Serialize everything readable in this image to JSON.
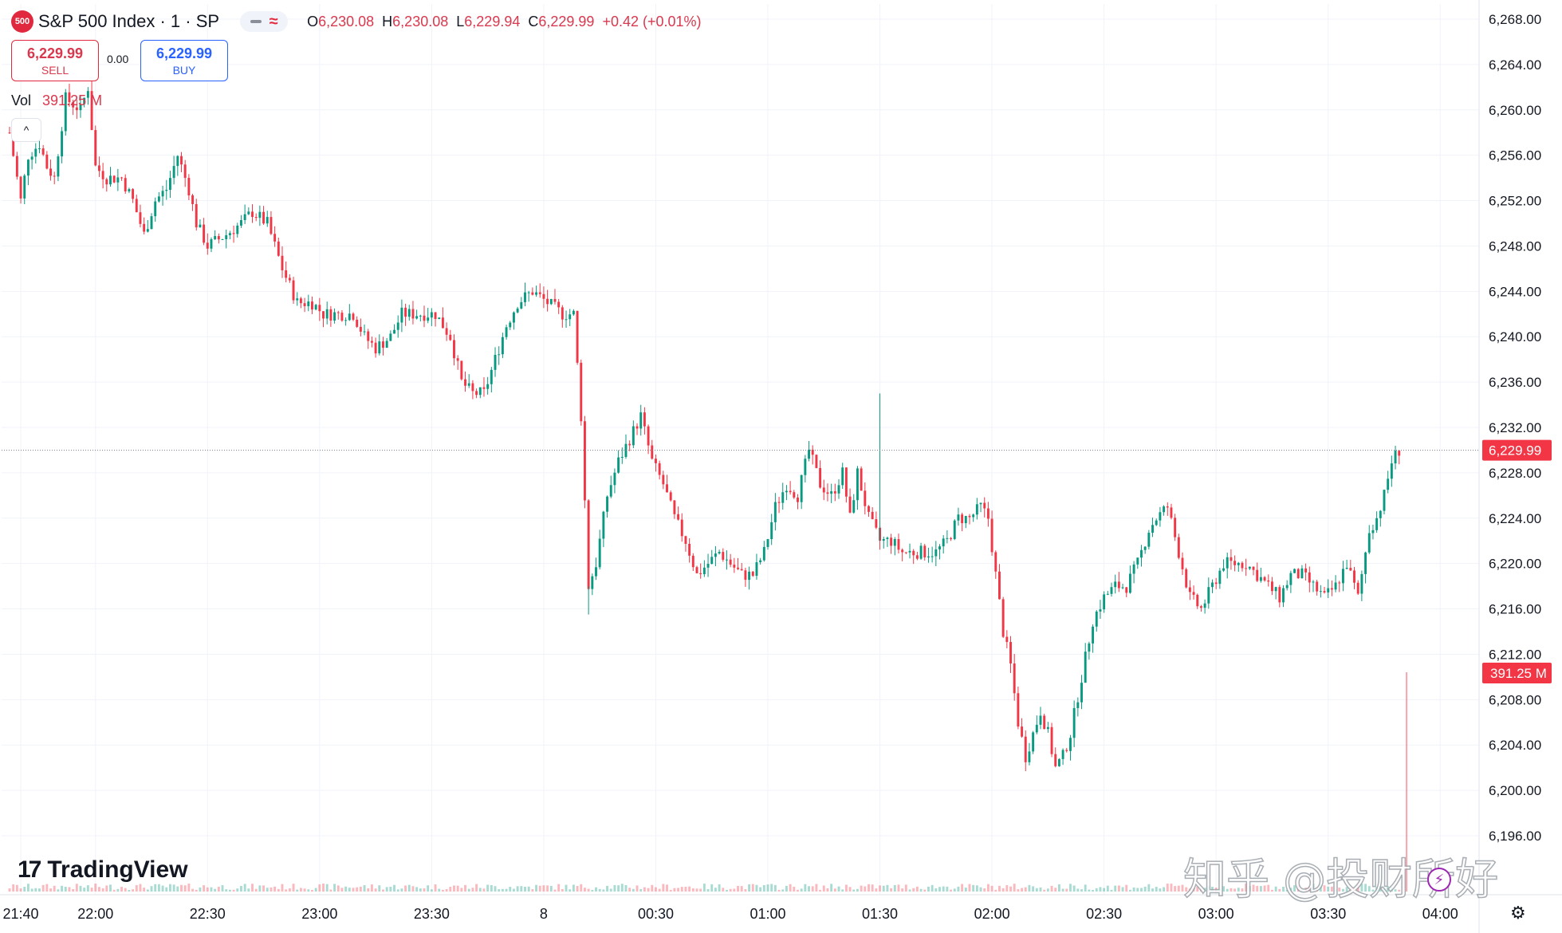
{
  "header": {
    "badge": "500",
    "symbol": "S&P 500 Index · 1 · SP",
    "o_label": "O",
    "o_value": "6,230.08",
    "h_label": "H",
    "h_value": "6,230.08",
    "l_label": "L",
    "l_value": "6,229.94",
    "c_label": "C",
    "c_value": "6,229.99",
    "change": "+0.42 (+0.01%)"
  },
  "trade": {
    "sell_price": "6,229.99",
    "sell_label": "SELL",
    "spread": "0.00",
    "buy_price": "6,229.99",
    "buy_label": "BUY"
  },
  "volume": {
    "label": "Vol",
    "value": "391.25 M"
  },
  "logo": {
    "text": "TradingView"
  },
  "watermark": "知乎 @投财所好",
  "colors": {
    "up": "#089981",
    "down": "#f23645",
    "grid": "#f0f3fa",
    "axis_text": "#131722",
    "last_price_bg": "#f23645"
  },
  "chart_data": {
    "type": "candlestick",
    "interval": "1 minute",
    "y_axis": {
      "min": 6195,
      "max": 6269,
      "ticks": [
        6268,
        6264,
        6260,
        6256,
        6252,
        6248,
        6244,
        6240,
        6236,
        6232,
        6228,
        6224,
        6220,
        6216,
        6212,
        6208,
        6204,
        6200,
        6196
      ],
      "tick_labels": [
        "6,268.00",
        "6,264.00",
        "6,260.00",
        "6,256.00",
        "6,252.00",
        "6,248.00",
        "6,244.00",
        "6,240.00",
        "6,236.00",
        "6,232.00",
        "6,228.00",
        "6,224.00",
        "6,220.00",
        "6,216.00",
        "6,212.00",
        "6,208.00",
        "6,204.00",
        "6,200.00",
        "6,196.00"
      ]
    },
    "x_axis": {
      "start": "21:37",
      "end": "04:04",
      "tick_labels": [
        "21:40",
        "22:00",
        "22:30",
        "23:00",
        "23:30",
        "8",
        "00:30",
        "01:00",
        "01:30",
        "02:00",
        "02:30",
        "03:00",
        "03:30",
        "04:00"
      ],
      "tick_minutes": [
        3,
        23,
        53,
        83,
        113,
        143,
        173,
        203,
        233,
        263,
        293,
        323,
        353,
        383
      ]
    },
    "last_price": 6229.99,
    "last_price_label": "6,229.99",
    "last_volume_label": "391.25 M",
    "grid": true,
    "path_points": [
      [
        0,
        6258
      ],
      [
        3,
        6252
      ],
      [
        5,
        6256
      ],
      [
        8,
        6257
      ],
      [
        10,
        6255
      ],
      [
        12,
        6254
      ],
      [
        15,
        6261
      ],
      [
        19,
        6260
      ],
      [
        21,
        6262
      ],
      [
        23,
        6255
      ],
      [
        26,
        6254
      ],
      [
        30,
        6254
      ],
      [
        33,
        6252
      ],
      [
        36,
        6249
      ],
      [
        39,
        6252
      ],
      [
        42,
        6253
      ],
      [
        45,
        6256
      ],
      [
        48,
        6253
      ],
      [
        50,
        6250
      ],
      [
        53,
        6248
      ],
      [
        58,
        6249
      ],
      [
        62,
        6250
      ],
      [
        65,
        6251
      ],
      [
        69,
        6250
      ],
      [
        73,
        6246
      ],
      [
        77,
        6243
      ],
      [
        81,
        6243
      ],
      [
        84,
        6242
      ],
      [
        88,
        6242
      ],
      [
        92,
        6242
      ],
      [
        95,
        6240
      ],
      [
        98,
        6239
      ],
      [
        102,
        6240
      ],
      [
        105,
        6242
      ],
      [
        110,
        6242
      ],
      [
        114,
        6242
      ],
      [
        118,
        6240
      ],
      [
        121,
        6236
      ],
      [
        124,
        6235
      ],
      [
        127,
        6235
      ],
      [
        130,
        6238
      ],
      [
        133,
        6241
      ],
      [
        136,
        6243
      ],
      [
        140,
        6244
      ],
      [
        144,
        6243
      ],
      [
        148,
        6242
      ],
      [
        151,
        6242
      ],
      [
        153,
        6233
      ],
      [
        155,
        6218
      ],
      [
        157,
        6220
      ],
      [
        160,
        6226
      ],
      [
        163,
        6229
      ],
      [
        166,
        6231
      ],
      [
        169,
        6233
      ],
      [
        172,
        6229
      ],
      [
        175,
        6227
      ],
      [
        178,
        6224
      ],
      [
        181,
        6222
      ],
      [
        184,
        6219
      ],
      [
        187,
        6220
      ],
      [
        190,
        6221
      ],
      [
        193,
        6220
      ],
      [
        196,
        6219
      ],
      [
        199,
        6219
      ],
      [
        202,
        6221
      ],
      [
        205,
        6225
      ],
      [
        208,
        6227
      ],
      [
        211,
        6226
      ],
      [
        214,
        6230
      ],
      [
        217,
        6227
      ],
      [
        220,
        6226
      ],
      [
        223,
        6228
      ],
      [
        225,
        6224
      ],
      [
        227,
        6228
      ],
      [
        230,
        6224
      ],
      [
        233,
        6222
      ],
      [
        236,
        6222
      ],
      [
        239,
        6221
      ],
      [
        242,
        6221
      ],
      [
        245,
        6221
      ],
      [
        248,
        6221
      ],
      [
        251,
        6222
      ],
      [
        254,
        6224
      ],
      [
        257,
        6224
      ],
      [
        260,
        6225
      ],
      [
        262,
        6224
      ],
      [
        264,
        6219
      ],
      [
        266,
        6214
      ],
      [
        268,
        6211
      ],
      [
        270,
        6206
      ],
      [
        272,
        6203
      ],
      [
        274,
        6205
      ],
      [
        276,
        6207
      ],
      [
        278,
        6205
      ],
      [
        280,
        6202
      ],
      [
        282,
        6203
      ],
      [
        284,
        6205
      ],
      [
        287,
        6210
      ],
      [
        290,
        6215
      ],
      [
        293,
        6217
      ],
      [
        296,
        6218
      ],
      [
        299,
        6218
      ],
      [
        302,
        6220
      ],
      [
        305,
        6223
      ],
      [
        307,
        6224
      ],
      [
        310,
        6225
      ],
      [
        313,
        6221
      ],
      [
        316,
        6217
      ],
      [
        319,
        6216
      ],
      [
        322,
        6218
      ],
      [
        325,
        6220
      ],
      [
        328,
        6220
      ],
      [
        331,
        6220
      ],
      [
        334,
        6219
      ],
      [
        337,
        6218
      ],
      [
        340,
        6217
      ],
      [
        343,
        6219
      ],
      [
        346,
        6219
      ],
      [
        349,
        6218
      ],
      [
        352,
        6217
      ],
      [
        355,
        6218
      ],
      [
        358,
        6220
      ],
      [
        361,
        6217
      ],
      [
        364,
        6223
      ],
      [
        366,
        6224
      ],
      [
        368,
        6226
      ],
      [
        370,
        6229
      ],
      [
        372,
        6230
      ]
    ]
  }
}
